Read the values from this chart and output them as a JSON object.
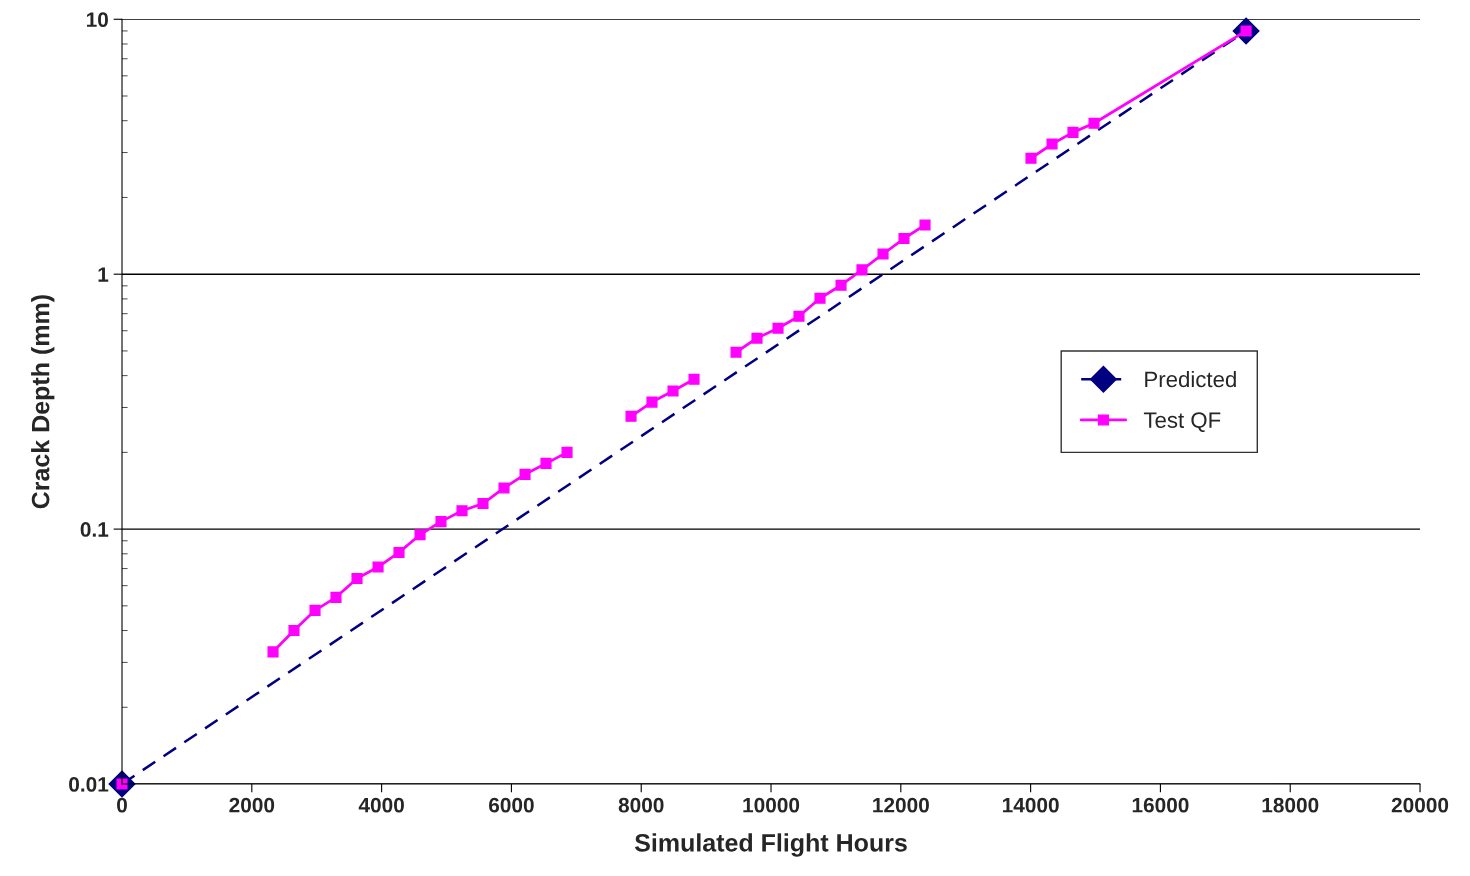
{
  "chart_data": {
    "type": "line",
    "xlabel": "Simulated Flight Hours",
    "ylabel": "Crack Depth (mm)",
    "log": "y",
    "xlim": [
      0,
      20000
    ],
    "xticks": [
      0,
      2000,
      4000,
      6000,
      8000,
      10000,
      12000,
      14000,
      16000,
      18000,
      20000
    ],
    "ylim": [
      0.01,
      10
    ],
    "yticks": [
      0.01,
      0.1,
      1,
      10
    ],
    "grid": "y",
    "legend": "right",
    "series": [
      {
        "name": "Predicted",
        "color": "#000080",
        "marker": "diamond",
        "line_style": "dashed",
        "x": [
          0,
          17320
        ],
        "values": [
          0.01,
          9
        ]
      },
      {
        "name": "Test QF",
        "color": "#ff00ff",
        "marker": "square",
        "line_style": "solid",
        "x": [
          0,
          1000,
          2327,
          2650,
          2974,
          3297,
          3621,
          3945,
          4268,
          4592,
          4915,
          5239,
          5562,
          5886,
          6210,
          6533,
          6857,
          7350,
          7843,
          8166,
          8490,
          8814,
          9140,
          9461,
          9784,
          10108,
          10431,
          10755,
          11079,
          11402,
          11726,
          12049,
          12373,
          13190,
          14006,
          14330,
          14653,
          14977,
          17320
        ],
        "values": [
          0.01,
          null,
          0.033,
          0.04,
          0.048,
          0.054,
          0.064,
          0.071,
          0.081,
          0.095,
          0.107,
          0.118,
          0.126,
          0.145,
          0.164,
          0.181,
          0.2,
          null,
          0.277,
          0.315,
          0.348,
          0.387,
          null,
          0.494,
          0.561,
          0.614,
          0.684,
          0.805,
          0.905,
          1.04,
          1.2,
          1.38,
          1.56,
          null,
          2.85,
          3.24,
          3.6,
          3.91,
          9
        ]
      }
    ]
  }
}
